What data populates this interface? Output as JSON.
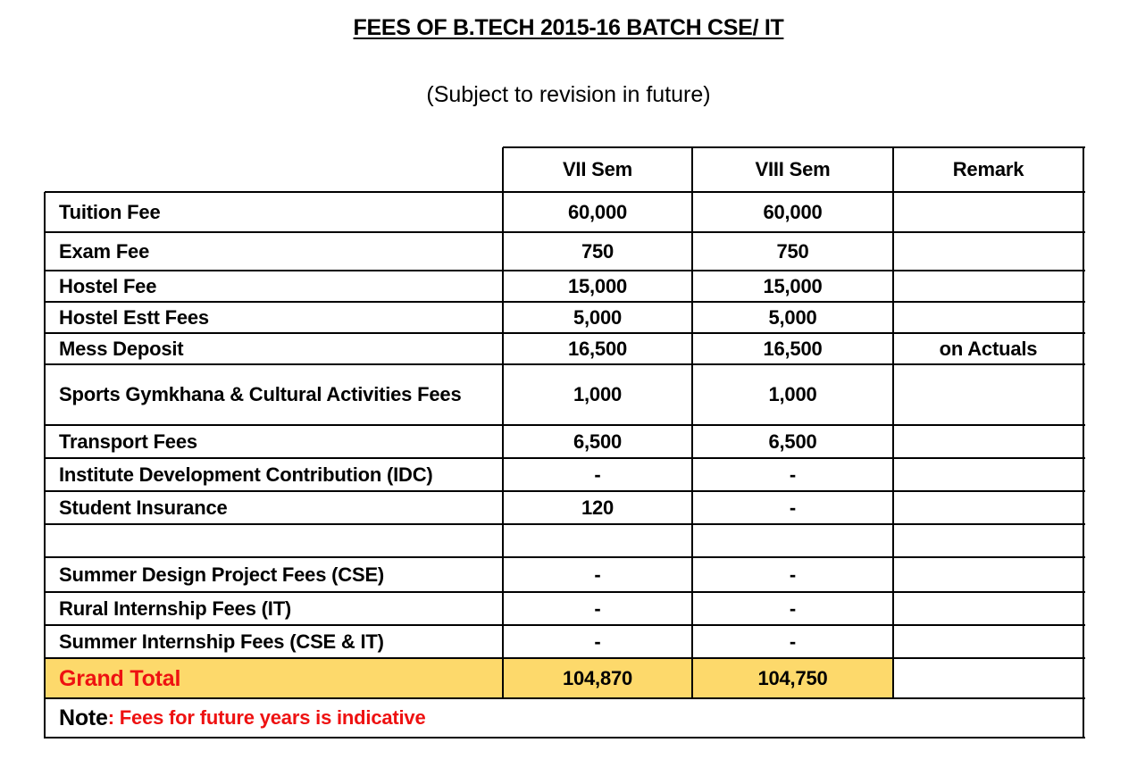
{
  "title": "FEES OF B.TECH 2015-16 BATCH CSE/ IT",
  "subtitle": "(Subject to revision in future)",
  "columns": [
    "VII Sem",
    "VIII Sem",
    "Remark"
  ],
  "rows": [
    {
      "label": "Tuition Fee",
      "vii": "60,000",
      "viii": "60,000",
      "remark": ""
    },
    {
      "label": "Exam Fee",
      "vii": "750",
      "viii": "750",
      "remark": ""
    },
    {
      "label": "Hostel Fee",
      "vii": "15,000",
      "viii": "15,000",
      "remark": ""
    },
    {
      "label": "Hostel Estt Fees",
      "vii": "5,000",
      "viii": "5,000",
      "remark": ""
    },
    {
      "label": "Mess Deposit",
      "vii": "16,500",
      "viii": "16,500",
      "remark": "on Actuals"
    },
    {
      "label": "Sports Gymkhana & Cultural Activities Fees",
      "vii": "1,000",
      "viii": "1,000",
      "remark": ""
    },
    {
      "label": "Transport Fees",
      "vii": "6,500",
      "viii": "6,500",
      "remark": ""
    },
    {
      "label": "Institute Development Contribution (IDC)",
      "vii": "-",
      "viii": "-",
      "remark": ""
    },
    {
      "label": "Student Insurance",
      "vii": "120",
      "viii": "-",
      "remark": ""
    },
    {
      "label": "",
      "vii": "",
      "viii": "",
      "remark": ""
    },
    {
      "label": "Summer Design Project Fees (CSE)",
      "vii": "-",
      "viii": "-",
      "remark": ""
    },
    {
      "label": "Rural Internship Fees (IT)",
      "vii": "-",
      "viii": "-",
      "remark": ""
    },
    {
      "label": "Summer Internship Fees (CSE & IT)",
      "vii": "-",
      "viii": "-",
      "remark": ""
    }
  ],
  "total": {
    "label": "Grand Total",
    "vii": "104,870",
    "viii": "104,750",
    "remark": ""
  },
  "note": {
    "label": "Note",
    "text": ": Fees for future years is indicative"
  },
  "colors": {
    "highlight": "#fdd96b",
    "accent_red": "#ee1111"
  }
}
